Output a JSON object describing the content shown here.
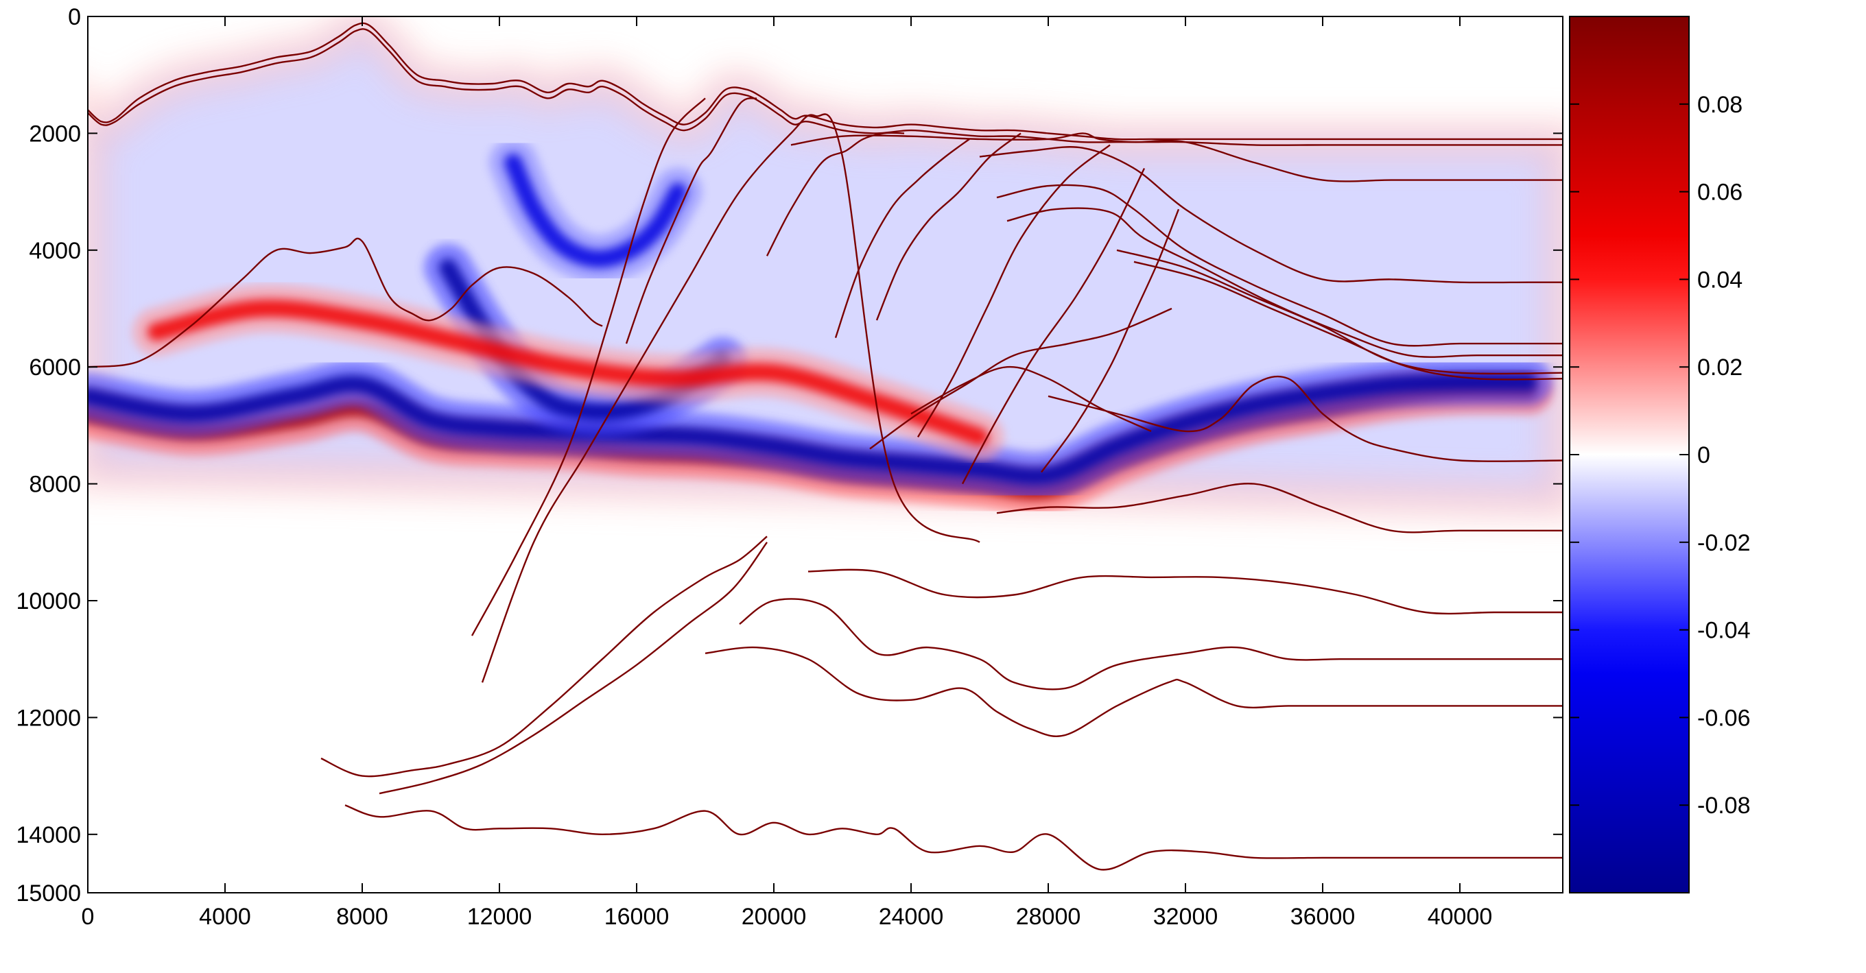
{
  "chart_data": {
    "type": "heatmap",
    "title": "",
    "xlabel": "",
    "ylabel": "",
    "xlim": [
      0,
      43000
    ],
    "ylim": [
      15000,
      0
    ],
    "y_reversed": true,
    "x_ticks": [
      0,
      4000,
      8000,
      12000,
      16000,
      20000,
      24000,
      28000,
      32000,
      36000,
      40000
    ],
    "x_tick_labels": [
      "0",
      "4000",
      "8000",
      "12000",
      "16000",
      "20000",
      "24000",
      "28000",
      "32000",
      "36000",
      "40000"
    ],
    "y_ticks": [
      0,
      2000,
      4000,
      6000,
      8000,
      10000,
      12000,
      14000,
      15000
    ],
    "y_tick_labels": [
      "0",
      "2000",
      "4000",
      "6000",
      "8000",
      "10000",
      "12000",
      "14000",
      "15000"
    ],
    "colorbar": {
      "colormap": "blue-white-red",
      "range": [
        -0.1,
        0.1
      ],
      "ticks": [
        0.08,
        0.06,
        0.04,
        0.02,
        0,
        -0.02,
        -0.04,
        -0.06,
        -0.08
      ],
      "tick_labels": [
        "0.08",
        "0.06",
        "0.04",
        "0.02",
        "0",
        "-0.02",
        "-0.04",
        "-0.06",
        "-0.08"
      ],
      "color_min": "#00008f",
      "color_mid": "#ffffff",
      "color_max": "#7f0000"
    },
    "horizon_color": "#7a0000",
    "wavefronts": [
      {
        "name": "deep-reflection",
        "sign": 1,
        "amplitude": 0.08,
        "x": [
          0,
          3000,
          6000,
          8000,
          10000,
          12000,
          14000,
          16000,
          18000,
          20000,
          22000,
          24000,
          26000,
          28000,
          30000,
          32000,
          34000,
          36000,
          38000,
          40000,
          42000
        ],
        "y": [
          6800,
          7100,
          6900,
          6700,
          7200,
          7300,
          7350,
          7450,
          7500,
          7600,
          7800,
          7900,
          8000,
          8100,
          7600,
          7200,
          6900,
          6700,
          6500,
          6400,
          6400
        ]
      },
      {
        "name": "deep-reflection-trough",
        "sign": -1,
        "amplitude": 0.09,
        "x": [
          0,
          3000,
          6000,
          8000,
          10000,
          12000,
          14000,
          16000,
          18000,
          20000,
          22000,
          24000,
          26000,
          28000,
          30000,
          32000,
          34000,
          36000,
          38000,
          40000,
          42000
        ],
        "y": [
          6500,
          6800,
          6500,
          6300,
          6900,
          7050,
          7100,
          7150,
          7200,
          7350,
          7550,
          7650,
          7750,
          7850,
          7350,
          6950,
          6650,
          6450,
          6300,
          6250,
          6250
        ]
      },
      {
        "name": "diffraction-bowl",
        "sign": -1,
        "amplitude": 0.09,
        "x": [
          10500,
          11500,
          12500,
          13500,
          14500,
          15500,
          16500,
          17500,
          18500
        ],
        "y": [
          4300,
          5300,
          6100,
          6600,
          6750,
          6750,
          6600,
          6300,
          5900
        ]
      },
      {
        "name": "shallow-hook",
        "sign": -1,
        "amplitude": 0.06,
        "x": [
          12400,
          13000,
          13800,
          14800,
          15800,
          16600,
          17200
        ],
        "y": [
          2500,
          3300,
          3900,
          4150,
          4000,
          3600,
          3000
        ]
      },
      {
        "name": "mid-event",
        "sign": 1,
        "amplitude": 0.05,
        "x": [
          2000,
          5000,
          8000,
          11000,
          14000,
          17000,
          20000,
          23000,
          26000
        ],
        "y": [
          5400,
          5000,
          5200,
          5600,
          6000,
          6200,
          6100,
          6600,
          7200
        ]
      }
    ],
    "horizons": [
      {
        "x": [
          0,
          400,
          800,
          1500,
          2500,
          3500,
          4500,
          5500,
          6500,
          7300,
          7800,
          8200,
          8800,
          9600,
          10400,
          11000,
          11800,
          12600,
          13400,
          14000,
          14600,
          15000,
          15600,
          16200,
          16800,
          17400,
          18000,
          18600,
          19200,
          19700,
          20200,
          20600,
          21000,
          22000,
          23000,
          24000,
          25000,
          26000,
          27000,
          28000,
          29000,
          30000,
          31000,
          32000,
          34000,
          36000,
          38000,
          40000,
          42000,
          43000
        ],
        "y": [
          1600,
          1800,
          1750,
          1400,
          1100,
          950,
          850,
          700,
          600,
          350,
          150,
          150,
          500,
          1000,
          1100,
          1150,
          1150,
          1100,
          1300,
          1150,
          1200,
          1100,
          1250,
          1500,
          1700,
          1850,
          1650,
          1250,
          1250,
          1400,
          1600,
          1750,
          1700,
          1850,
          1900,
          1850,
          1900,
          1950,
          1950,
          2000,
          2050,
          2100,
          2100,
          2100,
          2100,
          2100,
          2100,
          2100,
          2100,
          2100
        ]
      },
      {
        "x": [
          0,
          400,
          800,
          1500,
          2500,
          3500,
          4500,
          5500,
          6500,
          7300,
          7800,
          8200,
          8800,
          9600,
          10400,
          11000,
          11800,
          12600,
          13400,
          14000,
          14600,
          15000,
          15600,
          16200,
          16800,
          17400,
          18000,
          18600,
          19200,
          19700,
          20200,
          20600,
          21000,
          22000,
          23000,
          24000,
          25000,
          26000,
          27000,
          28000,
          29000,
          30000,
          31000,
          32000,
          34000,
          36000,
          38000,
          40000,
          42000,
          43000
        ],
        "y": [
          1650,
          1850,
          1800,
          1500,
          1200,
          1050,
          950,
          800,
          700,
          450,
          250,
          250,
          600,
          1100,
          1200,
          1250,
          1250,
          1200,
          1400,
          1250,
          1300,
          1200,
          1350,
          1600,
          1800,
          1950,
          1750,
          1350,
          1350,
          1500,
          1700,
          1850,
          1800,
          1950,
          2000,
          1950,
          2000,
          2050,
          2050,
          2100,
          2150,
          2150,
          2150,
          2150,
          2200,
          2200,
          2200,
          2200,
          2200,
          2200
        ]
      },
      {
        "x": [
          0,
          1500,
          3000,
          4500,
          5500,
          6500,
          7500,
          8000,
          8800,
          9500,
          10000,
          10600,
          11200,
          12000,
          13000,
          14000,
          14700,
          15000
        ],
        "y": [
          6000,
          5900,
          5300,
          4500,
          4000,
          4050,
          3950,
          3850,
          4800,
          5100,
          5200,
          5000,
          4600,
          4300,
          4400,
          4800,
          5200,
          5300
        ]
      },
      {
        "x": [
          20500,
          22000,
          24000,
          26000,
          28000,
          29000,
          29500,
          30500,
          32000,
          34000,
          36000,
          38000,
          40000,
          42000,
          43000
        ],
        "y": [
          2200,
          2050,
          2050,
          2100,
          2100,
          2000,
          2100,
          2150,
          2150,
          2500,
          2800,
          2800,
          2800,
          2800,
          2800
        ]
      },
      {
        "x": [
          26000,
          27500,
          29000,
          30500,
          32000,
          34000,
          36000,
          38000,
          40000,
          42000,
          43000
        ],
        "y": [
          2400,
          2300,
          2250,
          2600,
          3300,
          4000,
          4500,
          4500,
          4550,
          4550,
          4550
        ]
      },
      {
        "x": [
          26500,
          28000,
          29500,
          30500,
          32000,
          34000,
          36000,
          38000,
          40000,
          42000,
          43000
        ],
        "y": [
          3100,
          2900,
          2950,
          3300,
          4000,
          4600,
          5100,
          5600,
          5600,
          5600,
          5600
        ]
      },
      {
        "x": [
          26800,
          28200,
          29800,
          30800,
          32500,
          34500,
          36500,
          38500,
          40500,
          43000
        ],
        "y": [
          3500,
          3300,
          3350,
          3800,
          4300,
          4900,
          5400,
          5800,
          5800,
          5800
        ]
      },
      {
        "x": [
          30000,
          32000,
          34000,
          36000,
          38000,
          40000,
          43000
        ],
        "y": [
          4000,
          4300,
          4800,
          5300,
          5900,
          6100,
          6100
        ]
      },
      {
        "x": [
          30500,
          32500,
          34500,
          36500,
          38500,
          40500,
          43000
        ],
        "y": [
          4200,
          4500,
          5000,
          5500,
          6000,
          6200,
          6200
        ]
      },
      {
        "x": [
          28000,
          30000,
          32000,
          33000,
          34000,
          35000,
          36000,
          37000,
          38000,
          40000,
          43000
        ],
        "y": [
          6500,
          6800,
          7100,
          6900,
          6300,
          6200,
          6800,
          7200,
          7400,
          7600,
          7600
        ]
      },
      {
        "x": [
          26500,
          28000,
          30000,
          32000,
          34000,
          36000,
          38000,
          40000,
          43000
        ],
        "y": [
          8500,
          8400,
          8400,
          8200,
          8000,
          8400,
          8800,
          8800,
          8800
        ]
      },
      {
        "x": [
          21000,
          23000,
          25000,
          27000,
          29000,
          31000,
          33000,
          35000,
          37000,
          39000,
          41000,
          43000
        ],
        "y": [
          9500,
          9500,
          9900,
          9900,
          9600,
          9600,
          9600,
          9700,
          9900,
          10200,
          10200,
          10200
        ]
      },
      {
        "x": [
          19000,
          20000,
          21500,
          23000,
          24500,
          26000,
          27000,
          28500,
          30000,
          32000,
          33500,
          35000,
          36500,
          38000,
          40000,
          43000
        ],
        "y": [
          10400,
          10000,
          10100,
          10900,
          10800,
          11000,
          11400,
          11500,
          11100,
          10900,
          10800,
          11000,
          11000,
          11000,
          11000,
          11000
        ]
      },
      {
        "x": [
          18000,
          19500,
          21000,
          22500,
          24000,
          25500,
          26500,
          27500,
          28500,
          30000,
          31500,
          32000,
          33500,
          35000,
          37000,
          40000,
          43000
        ],
        "y": [
          10900,
          10800,
          11000,
          11600,
          11700,
          11500,
          11900,
          12200,
          12300,
          11800,
          11400,
          11400,
          11800,
          11800,
          11800,
          11800,
          11800
        ]
      },
      {
        "x": [
          7500,
          8500,
          10000,
          11000,
          12000,
          13500,
          15000,
          16500,
          18000,
          19000,
          20000,
          21000,
          22000,
          23000,
          23500,
          24500,
          26000,
          27000,
          28000,
          29500,
          31000,
          32500,
          34000,
          36000,
          38000,
          40000,
          43000
        ],
        "y": [
          13500,
          13700,
          13600,
          13900,
          13900,
          13900,
          14000,
          13900,
          13600,
          14000,
          13800,
          14000,
          13900,
          14000,
          13900,
          14300,
          14200,
          14300,
          14000,
          14600,
          14300,
          14300,
          14400,
          14400,
          14400,
          14400,
          14400
        ]
      },
      {
        "x": [
          11500,
          13000,
          14500,
          16000,
          17500,
          19000,
          20500,
          21200,
          22000,
          23500,
          26000
        ],
        "y": [
          11400,
          9000,
          7500,
          6000,
          4500,
          3000,
          2000,
          1700,
          2400,
          8000,
          9000
        ]
      },
      {
        "x": [
          6800,
          8000,
          9500,
          10500,
          12000,
          13500,
          15000,
          16500,
          18000,
          19000,
          19800
        ],
        "y": [
          12700,
          13000,
          12900,
          12800,
          12500,
          11800,
          11000,
          10200,
          9600,
          9300,
          8900
        ]
      },
      {
        "x": [
          8500,
          10000,
          11500,
          13000,
          14500,
          16000,
          17500,
          18800,
          19800
        ],
        "y": [
          13300,
          13100,
          12800,
          12300,
          11700,
          11100,
          10400,
          9800,
          9000
        ]
      },
      {
        "x": [
          11200,
          12500,
          14000,
          15200,
          16200,
          17000,
          18000
        ],
        "y": [
          10600,
          9200,
          7400,
          5200,
          3200,
          2000,
          1400
        ]
      },
      {
        "x": [
          15700,
          16300,
          17100,
          17800,
          18200,
          19000,
          19500
        ],
        "y": [
          5600,
          4600,
          3500,
          2600,
          2300,
          1500,
          1400
        ]
      },
      {
        "x": [
          19800,
          20500,
          21400,
          22100,
          22600,
          23200,
          23800
        ],
        "y": [
          4100,
          3300,
          2500,
          2300,
          2100,
          2000,
          2000
        ]
      },
      {
        "x": [
          21800,
          22500,
          23400,
          24200,
          25000,
          25700
        ],
        "y": [
          5500,
          4300,
          3300,
          2800,
          2400,
          2100
        ]
      },
      {
        "x": [
          23000,
          23700,
          24500,
          25400,
          26300,
          27200
        ],
        "y": [
          5200,
          4200,
          3500,
          3000,
          2400,
          2000
        ]
      },
      {
        "x": [
          24200,
          25200,
          26200,
          27200,
          28500,
          29800
        ],
        "y": [
          7200,
          6200,
          5000,
          3800,
          2800,
          2200
        ]
      },
      {
        "x": [
          25500,
          26500,
          27600,
          28800,
          29800,
          30800
        ],
        "y": [
          8000,
          6900,
          5800,
          4800,
          3800,
          2600
        ]
      },
      {
        "x": [
          27800,
          28800,
          29800,
          30500,
          31200,
          31800
        ],
        "y": [
          7800,
          7000,
          6000,
          5100,
          4200,
          3300
        ]
      },
      {
        "x": [
          22800,
          24200,
          25600,
          27000,
          28600,
          30000,
          31600
        ],
        "y": [
          7400,
          6800,
          6300,
          5800,
          5600,
          5400,
          5000
        ]
      },
      {
        "x": [
          24000,
          25500,
          26800,
          28000,
          29500,
          31000
        ],
        "y": [
          6800,
          6300,
          6000,
          6200,
          6700,
          7100
        ]
      }
    ]
  }
}
